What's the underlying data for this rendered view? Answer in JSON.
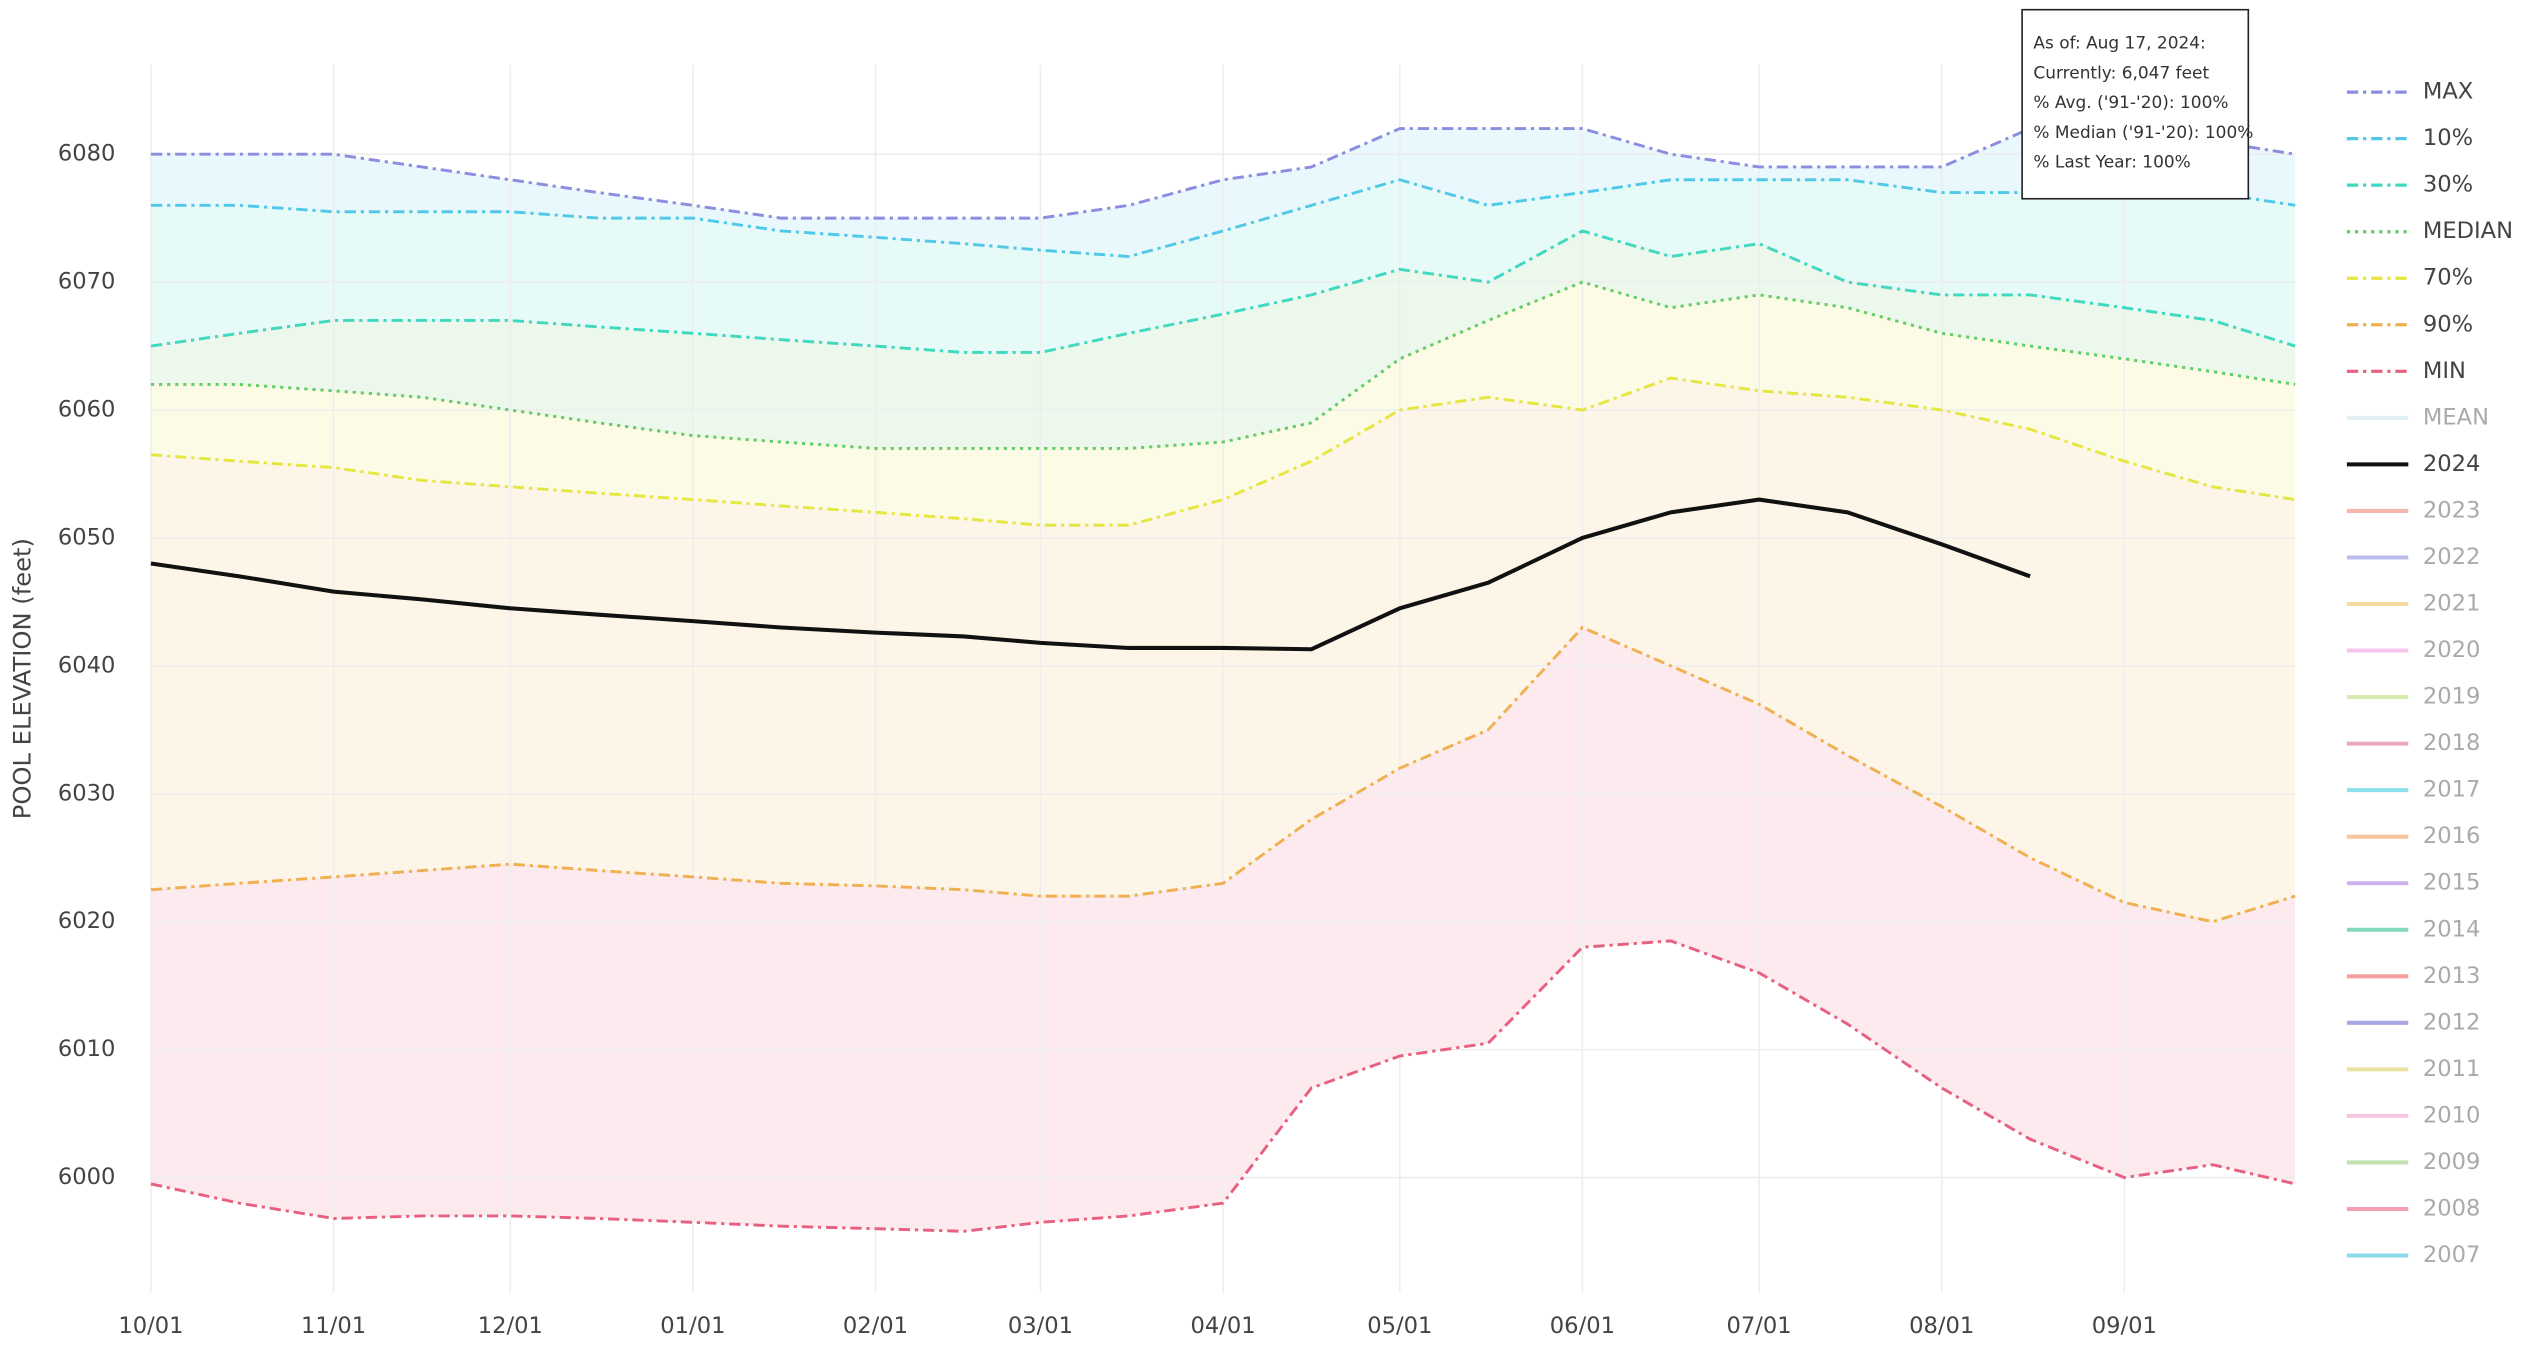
{
  "chart_data": {
    "type": "line",
    "ylabel": "POOL ELEVATION (feet)",
    "xlim": [
      0,
      364
    ],
    "ylim": [
      5991,
      6087
    ],
    "xticks": [
      {
        "value": 0,
        "label": "10/01"
      },
      {
        "value": 31,
        "label": "11/01"
      },
      {
        "value": 61,
        "label": "12/01"
      },
      {
        "value": 92,
        "label": "01/01"
      },
      {
        "value": 123,
        "label": "02/01"
      },
      {
        "value": 151,
        "label": "03/01"
      },
      {
        "value": 182,
        "label": "04/01"
      },
      {
        "value": 212,
        "label": "05/01"
      },
      {
        "value": 243,
        "label": "06/01"
      },
      {
        "value": 273,
        "label": "07/01"
      },
      {
        "value": 304,
        "label": "08/01"
      },
      {
        "value": 335,
        "label": "09/01"
      }
    ],
    "yticks": [
      6000,
      6010,
      6020,
      6030,
      6040,
      6050,
      6060,
      6070,
      6080
    ],
    "grid": true,
    "legend": "right",
    "x": [
      0,
      15,
      31,
      46,
      61,
      76,
      92,
      107,
      123,
      138,
      151,
      166,
      182,
      197,
      212,
      227,
      243,
      258,
      273,
      288,
      304,
      319,
      335,
      350,
      364
    ],
    "series": [
      {
        "name": "MAX",
        "color": "#8c8ce0",
        "dash": "dashdot",
        "band": true,
        "values": [
          6080,
          6080,
          6080,
          6079,
          6078,
          6077,
          6076,
          6075,
          6075,
          6075,
          6075,
          6076,
          6078,
          6079,
          6082,
          6082,
          6082,
          6080,
          6079,
          6079,
          6079,
          6082,
          6080,
          6081,
          6080
        ]
      },
      {
        "name": "10%",
        "color": "#52c8e8",
        "dash": "dashdot",
        "band": true,
        "values": [
          6076,
          6076,
          6075.5,
          6075.5,
          6075.5,
          6075,
          6075,
          6074,
          6073.5,
          6073,
          6072.5,
          6072,
          6074,
          6076,
          6078,
          6076,
          6077,
          6078,
          6078,
          6078,
          6077,
          6077,
          6077,
          6077,
          6076
        ]
      },
      {
        "name": "30%",
        "color": "#40d8c0",
        "dash": "dashdot",
        "band": true,
        "values": [
          6065,
          6066,
          6067,
          6067,
          6067,
          6066.5,
          6066,
          6065.5,
          6065,
          6064.5,
          6064.5,
          6066,
          6067.5,
          6069,
          6071,
          6070,
          6074,
          6072,
          6073,
          6070,
          6069,
          6069,
          6068,
          6067,
          6065
        ]
      },
      {
        "name": "MEDIAN",
        "color": "#66cc66",
        "dash": "dot",
        "band": true,
        "values": [
          6062,
          6062,
          6061.5,
          6061,
          6060,
          6059,
          6058,
          6057.5,
          6057,
          6057,
          6057,
          6057,
          6057.5,
          6059,
          6064,
          6067,
          6070,
          6068,
          6069,
          6068,
          6066,
          6065,
          6064,
          6063,
          6062
        ]
      },
      {
        "name": "70%",
        "color": "#e6e640",
        "dash": "dashdot",
        "band": true,
        "values": [
          6056.5,
          6056,
          6055.5,
          6054.5,
          6054,
          6053.5,
          6053,
          6052.5,
          6052,
          6051.5,
          6051,
          6051,
          6053,
          6056,
          6060,
          6061,
          6060,
          6062.5,
          6061.5,
          6061,
          6060,
          6058.5,
          6056,
          6054,
          6053
        ]
      },
      {
        "name": "90%",
        "color": "#f0b050",
        "dash": "dashdot",
        "band": true,
        "values": [
          6022.5,
          6023,
          6023.5,
          6024,
          6024.5,
          6024,
          6023.5,
          6023,
          6022.8,
          6022.5,
          6022,
          6022,
          6023,
          6028,
          6032,
          6035,
          6043,
          6040,
          6037,
          6033,
          6029,
          6025,
          6021.5,
          6020,
          6022
        ]
      },
      {
        "name": "MIN",
        "color": "#e86080",
        "dash": "dashdot",
        "band": false,
        "values": [
          5999.5,
          5998,
          5996.8,
          5997,
          5997,
          5996.8,
          5996.5,
          5996.2,
          5996,
          5995.8,
          5996.5,
          5997,
          5998,
          6007,
          6009.5,
          6010.5,
          6018,
          6018.5,
          6016,
          6012,
          6007,
          6003,
          6000,
          6001,
          5999.5
        ]
      },
      {
        "name": "2024",
        "color": "#111111",
        "dash": "solid",
        "band": false,
        "values": [
          6048,
          6047,
          6045.8,
          6045.2,
          6044.5,
          6044,
          6043.5,
          6043,
          6042.6,
          6042.3,
          6041.8,
          6041.4,
          6041.4,
          6041.3,
          6044.5,
          6046.5,
          6050,
          6052,
          6053,
          6052,
          6049.5,
          6047,
          null,
          null,
          null
        ]
      }
    ],
    "hidden_series": [
      {
        "name": "MEAN",
        "color": "#cfe6ee"
      },
      {
        "name": "2023",
        "color": "#f08878"
      },
      {
        "name": "2022",
        "color": "#9090e0"
      },
      {
        "name": "2021",
        "color": "#f0c060"
      },
      {
        "name": "2020",
        "color": "#f0a0e0"
      },
      {
        "name": "2019",
        "color": "#c0e080"
      },
      {
        "name": "2018",
        "color": "#e07090"
      },
      {
        "name": "2017",
        "color": "#40d0e0"
      },
      {
        "name": "2016",
        "color": "#f0a060"
      },
      {
        "name": "2015",
        "color": "#b080e0"
      },
      {
        "name": "2014",
        "color": "#30c090"
      },
      {
        "name": "2013",
        "color": "#f06060"
      },
      {
        "name": "2012",
        "color": "#7070d0"
      },
      {
        "name": "2011",
        "color": "#e0d060"
      },
      {
        "name": "2010",
        "color": "#f0a0d0"
      },
      {
        "name": "2009",
        "color": "#a0d080"
      },
      {
        "name": "2008",
        "color": "#f06080"
      },
      {
        "name": "2007",
        "color": "#40c0e0"
      }
    ],
    "annotation": [
      "As of: Aug 17, 2024:",
      "Currently: 6,047 feet",
      "% Avg. ('91-'20): 100%",
      "% Median ('91-'20): 100%",
      "% Last Year: 100%"
    ]
  }
}
